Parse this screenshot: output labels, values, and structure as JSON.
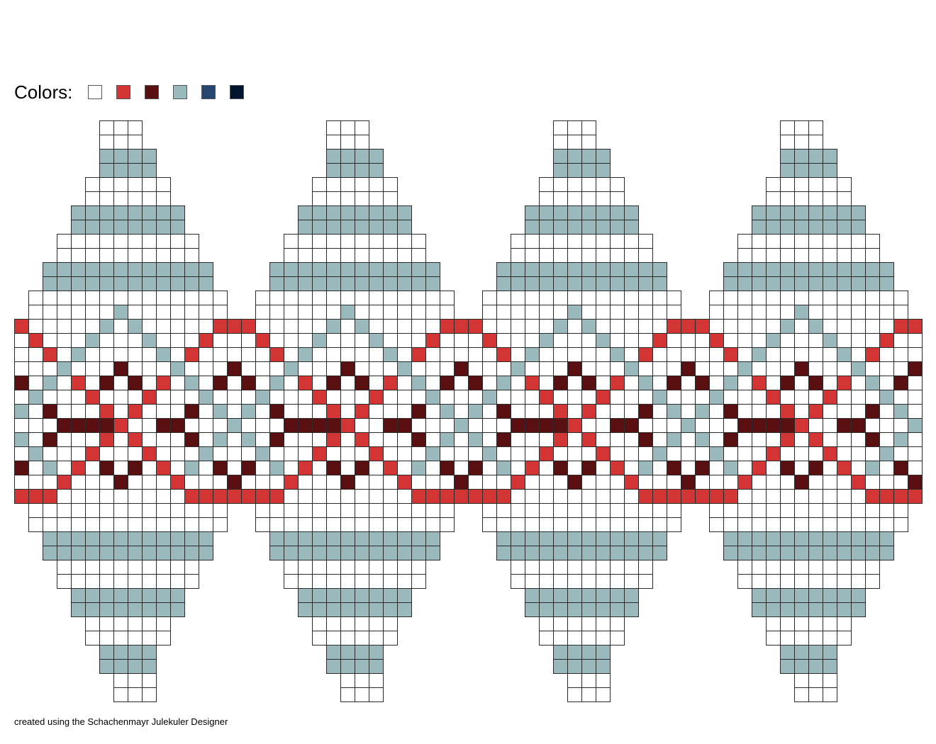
{
  "legend": {
    "title": "Colors:",
    "palette": [
      {
        "code": "W",
        "color": "#ffffff"
      },
      {
        "code": "R",
        "color": "#d33535"
      },
      {
        "code": "D",
        "color": "#5a0f10"
      },
      {
        "code": "G",
        "color": "#99b9bc"
      },
      {
        "code": "B",
        "color": "#27466f"
      },
      {
        "code": "N",
        "color": "#00162e"
      }
    ]
  },
  "pattern": {
    "panel_repeats": 4,
    "rows": [
      "......WWW.......",
      "......WWW.......",
      "......GGGG......",
      "......GGGG......",
      ".....WWWWWW.....",
      ".....WWWWWW.....",
      "....GGGGGGGG....",
      "....GGGGGGGG....",
      "...WWWWWWWWWW...",
      "...WWWWWWWWWW...",
      "..GGGGGGGGGGGG..",
      "..GGGGGGGGGGGG..",
      ".WWWWWWWWWWWWWW.",
      ".WWWWWWGWWWWWWW.",
      "RWWWWWGWGWWWWWRR",
      "WRWWWGWWWGWWWRWW",
      "WWRWGWWWWWGWRWWW",
      "WWWGWWWDWWWGWWWD",
      "DWGWRWDWDWRWGWDW",
      "WGWWWRWWWRWWWGWW",
      "GWDWWWRWRWWWDWGW",
      "WWWDDDDRWWDDWWWG",
      "GWDWWWRWRWWWDWGW",
      "WGWWWRWWWRWWWGWW",
      "DWGWRWDWDWRWGWDW",
      "WWWRWWWDWWWRWWWD",
      "RRRWWWWWWWWWRRRR",
      ".WWWWWWWWWWWWWW.",
      ".WWWWWWWWWWWWWW.",
      "..GGGGGGGGGGGG..",
      "..GGGGGGGGGGGG..",
      "...WWWWWWWWWW...",
      "...WWWWWWWWWW...",
      "....GGGGGGGG....",
      "....GGGGGGGG....",
      ".....WWWWWW.....",
      ".....WWWWWW.....",
      "......GGGG......",
      "......GGGG......",
      ".......WWW......",
      ".......WWW......"
    ]
  },
  "footer": "created using the Schachenmayr Julekuler Designer"
}
